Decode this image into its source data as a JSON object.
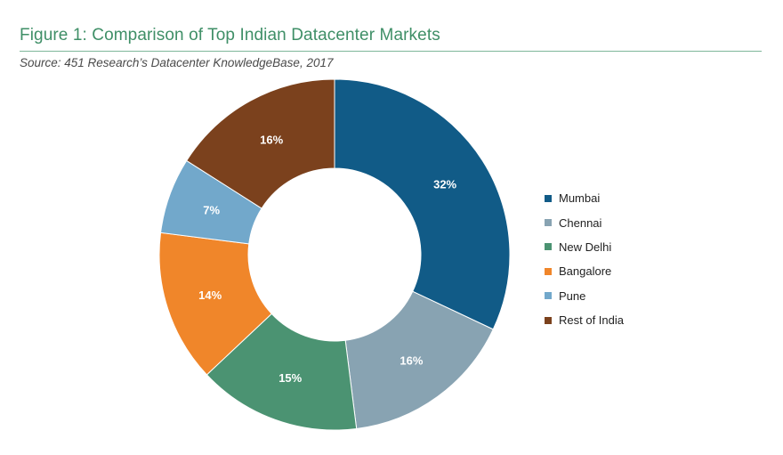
{
  "figure": {
    "title": "Figure 1: Comparison of Top Indian Datacenter Markets",
    "source": "Source: 451 Research’s Datacenter KnowledgeBase, 2017"
  },
  "chart_data": {
    "type": "pie",
    "variant": "donut",
    "title": "Figure 1: Comparison of Top Indian Datacenter Markets",
    "subtitle": "Source: 451 Research’s Datacenter KnowledgeBase, 2017",
    "start_angle_deg": 0,
    "direction": "clockwise",
    "legend_position": "right",
    "slices": [
      {
        "label": "Mumbai",
        "value": 32,
        "display": "32%",
        "color": "#115b87"
      },
      {
        "label": "Chennai",
        "value": 16,
        "display": "16%",
        "color": "#88a3b2"
      },
      {
        "label": "New Delhi",
        "value": 15,
        "display": "15%",
        "color": "#4b9372"
      },
      {
        "label": "Bangalore",
        "value": 14,
        "display": "14%",
        "color": "#f0862a"
      },
      {
        "label": "Pune",
        "value": 7,
        "display": "7%",
        "color": "#72a8cb"
      },
      {
        "label": "Rest of India",
        "value": 16,
        "display": "16%",
        "color": "#7b411d"
      }
    ]
  }
}
